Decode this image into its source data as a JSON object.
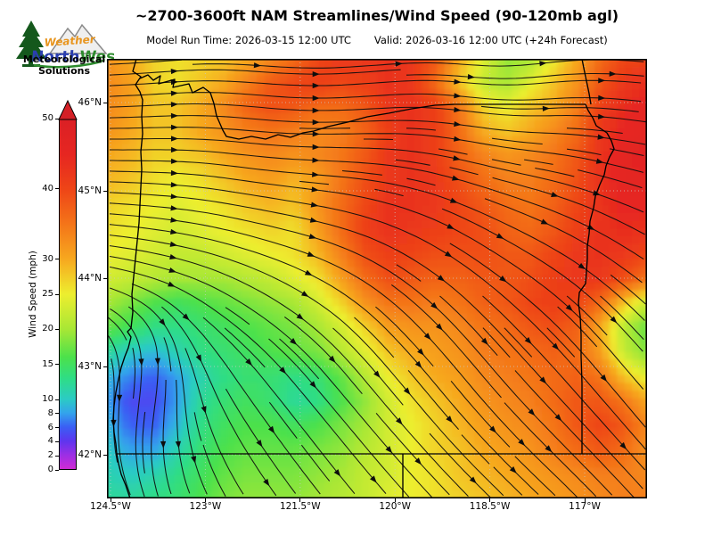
{
  "logo": {
    "brand_weather": "Weather",
    "brand_north": "North",
    "brand_west": "West",
    "tagline_line1": "Meteorological",
    "tagline_line2": "Solutions"
  },
  "header": {
    "title": "~2700-3600ft NAM Streamlines/Wind Speed (90-120mb agl)",
    "model_run_label": "Model Run Time: 2026-03-15 12:00 UTC",
    "valid_label": "Valid: 2026-03-16 12:00 UTC  (+24h Forecast)"
  },
  "colorbar": {
    "label": "Wind Speed (mph)",
    "units": "mph",
    "range": [
      0,
      50
    ],
    "extend_max_arrow": true,
    "arrow_color": "#d42026",
    "ticks": [
      0,
      2,
      4,
      6,
      8,
      10,
      15,
      20,
      25,
      30,
      40,
      50
    ],
    "stops": [
      [
        0,
        "#cf2bd4"
      ],
      [
        2,
        "#9c2fe4"
      ],
      [
        4,
        "#5e35ee"
      ],
      [
        6,
        "#3a5ef4"
      ],
      [
        8,
        "#33a3ec"
      ],
      [
        10,
        "#2bcbc4"
      ],
      [
        13,
        "#2fdd85"
      ],
      [
        16,
        "#4ce14b"
      ],
      [
        20,
        "#a8e735"
      ],
      [
        25,
        "#edee2f"
      ],
      [
        30,
        "#f7a81f"
      ],
      [
        35,
        "#f47519"
      ],
      [
        40,
        "#ee4517"
      ],
      [
        45,
        "#e62621"
      ],
      [
        50,
        "#db2025"
      ]
    ]
  },
  "map_axes": {
    "lat_ticks": [
      "46°N",
      "45°N",
      "44°N",
      "43°N",
      "42°N"
    ],
    "lon_ticks": [
      "124.5°W",
      "123°W",
      "121.5°W",
      "120°W",
      "118.5°W",
      "117°W"
    ]
  },
  "chart_data": {
    "type": "heatmap",
    "subtype": "streamline-wind-field-over-map",
    "region": "Oregon",
    "units": "mph",
    "legend_position": "left",
    "lon_extent": [
      -124.55,
      -116.0
    ],
    "lat_extent": [
      41.5,
      46.5
    ],
    "grid_cols": 24,
    "grid_rows": 19,
    "wind_speed_mph": [
      [
        32,
        30,
        27,
        26,
        27,
        28,
        30,
        33,
        36,
        40,
        42,
        42,
        43,
        42,
        38,
        30,
        24,
        19,
        20,
        25,
        30,
        36,
        40,
        40
      ],
      [
        33,
        31,
        27,
        26,
        28,
        30,
        34,
        38,
        40,
        41,
        40,
        41,
        43,
        42,
        36,
        28,
        22,
        20,
        24,
        28,
        32,
        38,
        42,
        44
      ],
      [
        33,
        31,
        28,
        28,
        30,
        33,
        37,
        39,
        38,
        36,
        36,
        38,
        42,
        43,
        41,
        35,
        27,
        25,
        28,
        30,
        34,
        41,
        44,
        46
      ],
      [
        32,
        30,
        28,
        28,
        30,
        32,
        34,
        35,
        34,
        33,
        34,
        37,
        41,
        43,
        41,
        36,
        30,
        28,
        30,
        33,
        36,
        42,
        45,
        46
      ],
      [
        30,
        29,
        27,
        27,
        28,
        30,
        32,
        33,
        32,
        33,
        35,
        38,
        42,
        43,
        41,
        37,
        34,
        32,
        33,
        35,
        38,
        43,
        46,
        47
      ],
      [
        29,
        28,
        26,
        25,
        26,
        28,
        30,
        31,
        29,
        31,
        35,
        39,
        42,
        43,
        42,
        39,
        36,
        34,
        34,
        36,
        39,
        43,
        46,
        46
      ],
      [
        27,
        26,
        25,
        24,
        25,
        26,
        28,
        29,
        28,
        32,
        36,
        40,
        43,
        43,
        42,
        40,
        38,
        36,
        35,
        37,
        40,
        43,
        45,
        45
      ],
      [
        26,
        25,
        24,
        23,
        24,
        25,
        26,
        27,
        26,
        31,
        36,
        41,
        43,
        42,
        41,
        40,
        39,
        37,
        36,
        38,
        41,
        43,
        44,
        43
      ],
      [
        25,
        24,
        23,
        22,
        22,
        23,
        24,
        25,
        26,
        29,
        34,
        39,
        41,
        40,
        39,
        39,
        39,
        38,
        38,
        40,
        42,
        43,
        42,
        40
      ],
      [
        23,
        22,
        21,
        20,
        20,
        20,
        21,
        22,
        24,
        26,
        31,
        36,
        39,
        38,
        37,
        37,
        38,
        38,
        39,
        41,
        42,
        42,
        39,
        35
      ],
      [
        20,
        18,
        16,
        15,
        16,
        17,
        18,
        19,
        20,
        23,
        27,
        32,
        35,
        35,
        34,
        35,
        37,
        38,
        40,
        41,
        40,
        36,
        28,
        22
      ],
      [
        17,
        15,
        13,
        13,
        14,
        15,
        16,
        17,
        18,
        20,
        23,
        27,
        31,
        32,
        32,
        33,
        35,
        36,
        38,
        39,
        37,
        30,
        21,
        17
      ],
      [
        12,
        10,
        9,
        11,
        13,
        14,
        15,
        16,
        17,
        18,
        21,
        24,
        28,
        30,
        31,
        32,
        34,
        35,
        36,
        37,
        36,
        31,
        22,
        18
      ],
      [
        9,
        7,
        6,
        8,
        11,
        13,
        14,
        14,
        13,
        14,
        17,
        21,
        25,
        28,
        30,
        31,
        33,
        34,
        35,
        36,
        37,
        35,
        28,
        24
      ],
      [
        8,
        5,
        5,
        8,
        12,
        14,
        15,
        14,
        12,
        13,
        16,
        19,
        23,
        26,
        28,
        30,
        32,
        33,
        34,
        36,
        38,
        38,
        35,
        30
      ],
      [
        9,
        6,
        6,
        9,
        13,
        15,
        16,
        16,
        15,
        16,
        18,
        20,
        23,
        25,
        27,
        29,
        31,
        32,
        33,
        35,
        38,
        40,
        38,
        33
      ],
      [
        10,
        8,
        8,
        11,
        14,
        16,
        17,
        17,
        17,
        18,
        19,
        21,
        23,
        25,
        27,
        28,
        30,
        31,
        32,
        34,
        36,
        38,
        36,
        32
      ],
      [
        11,
        10,
        11,
        13,
        15,
        17,
        18,
        18,
        18,
        19,
        20,
        22,
        23,
        25,
        26,
        28,
        29,
        30,
        31,
        32,
        33,
        34,
        34,
        33
      ],
      [
        12,
        12,
        13,
        14,
        16,
        18,
        19,
        19,
        19,
        20,
        21,
        22,
        24,
        25,
        26,
        27,
        28,
        29,
        30,
        31,
        32,
        33,
        34,
        34
      ]
    ],
    "flow_direction_deg": [
      [
        3,
        3,
        4,
        4,
        2,
        -1,
        -3,
        -4,
        -2,
        0,
        3,
        4,
        4,
        2,
        -1,
        -4,
        -3,
        2,
        6,
        6,
        3,
        0,
        -3,
        -5
      ],
      [
        3,
        3,
        4,
        3,
        1,
        -2,
        -4,
        -4,
        -2,
        0,
        3,
        4,
        4,
        2,
        -2,
        -5,
        -4,
        0,
        4,
        5,
        2,
        -1,
        -4,
        -6
      ],
      [
        2,
        2,
        3,
        2,
        -1,
        -3,
        -5,
        -5,
        -3,
        0,
        2,
        3,
        3,
        0,
        -4,
        -6,
        -6,
        -3,
        1,
        3,
        0,
        -3,
        -6,
        -7
      ],
      [
        0,
        1,
        1,
        0,
        -2,
        -4,
        -5,
        -4,
        -2,
        0,
        1,
        1,
        0,
        -3,
        -6,
        -8,
        -8,
        -6,
        -3,
        -2,
        -4,
        -6,
        -8,
        -8
      ],
      [
        -1,
        0,
        0,
        -2,
        -4,
        -6,
        -6,
        -5,
        -3,
        -2,
        -2,
        -3,
        -5,
        -8,
        -10,
        -12,
        -12,
        -10,
        -8,
        -8,
        -10,
        -12,
        -12,
        -12
      ],
      [
        -2,
        -2,
        -3,
        -4,
        -6,
        -8,
        -8,
        -7,
        -6,
        -5,
        -6,
        -8,
        -10,
        -12,
        -15,
        -16,
        -16,
        -15,
        -14,
        -14,
        -15,
        -16,
        -16,
        -16
      ],
      [
        -4,
        -4,
        -5,
        -6,
        -8,
        -10,
        -10,
        -10,
        -10,
        -10,
        -12,
        -14,
        -16,
        -18,
        -20,
        -22,
        -22,
        -21,
        -20,
        -20,
        -21,
        -22,
        -22,
        -22
      ],
      [
        -6,
        -6,
        -8,
        -9,
        -11,
        -13,
        -14,
        -14,
        -14,
        -15,
        -17,
        -19,
        -22,
        -24,
        -26,
        -28,
        -28,
        -27,
        -26,
        -26,
        -27,
        -28,
        -28,
        -27
      ],
      [
        -9,
        -10,
        -12,
        -13,
        -15,
        -17,
        -18,
        -19,
        -20,
        -21,
        -23,
        -26,
        -28,
        -30,
        -32,
        -33,
        -33,
        -32,
        -31,
        -31,
        -32,
        -33,
        -33,
        -32
      ],
      [
        -14,
        -16,
        -18,
        -20,
        -22,
        -24,
        -25,
        -26,
        -27,
        -28,
        -30,
        -32,
        -34,
        -36,
        -37,
        -38,
        -38,
        -37,
        -36,
        -36,
        -37,
        -38,
        -38,
        -37
      ],
      [
        -25,
        -30,
        -35,
        -35,
        -33,
        -32,
        -32,
        -32,
        -33,
        -34,
        -36,
        -38,
        -40,
        -41,
        -42,
        -43,
        -43,
        -42,
        -41,
        -41,
        -42,
        -43,
        -43,
        -42
      ],
      [
        -45,
        -55,
        -60,
        -55,
        -45,
        -40,
        -38,
        -38,
        -39,
        -40,
        -42,
        -44,
        -45,
        -46,
        -46,
        -47,
        -47,
        -46,
        -45,
        -45,
        -46,
        -47,
        -47,
        -46
      ],
      [
        -70,
        -80,
        -85,
        -75,
        -60,
        -50,
        -45,
        -44,
        -44,
        -45,
        -46,
        -47,
        -48,
        -48,
        -49,
        -49,
        -49,
        -48,
        -47,
        -47,
        -48,
        -49,
        -49,
        -48
      ],
      [
        -85,
        -92,
        -95,
        -85,
        -70,
        -58,
        -52,
        -50,
        -49,
        -49,
        -50,
        -50,
        -50,
        -50,
        -50,
        -50,
        -50,
        -49,
        -48,
        -48,
        -49,
        -50,
        -50,
        -49
      ],
      [
        -90,
        -96,
        -98,
        -90,
        -75,
        -62,
        -55,
        -52,
        -51,
        -50,
        -50,
        -50,
        -50,
        -50,
        -50,
        -50,
        -49,
        -48,
        -47,
        -47,
        -48,
        -49,
        -50,
        -50
      ],
      [
        -88,
        -95,
        -96,
        -88,
        -75,
        -64,
        -57,
        -54,
        -52,
        -51,
        -50,
        -50,
        -49,
        -49,
        -49,
        -48,
        -48,
        -47,
        -46,
        -46,
        -47,
        -48,
        -49,
        -50
      ],
      [
        -80,
        -88,
        -90,
        -84,
        -73,
        -64,
        -58,
        -55,
        -53,
        -52,
        -51,
        -50,
        -49,
        -48,
        -48,
        -47,
        -46,
        -46,
        -45,
        -45,
        -46,
        -47,
        -48,
        -49
      ],
      [
        -70,
        -78,
        -82,
        -78,
        -70,
        -63,
        -58,
        -55,
        -53,
        -52,
        -51,
        -50,
        -49,
        -48,
        -47,
        -46,
        -45,
        -45,
        -44,
        -44,
        -45,
        -46,
        -47,
        -48
      ],
      [
        -60,
        -68,
        -72,
        -70,
        -66,
        -61,
        -57,
        -55,
        -53,
        -52,
        -51,
        -50,
        -49,
        -48,
        -47,
        -46,
        -45,
        -44,
        -44,
        -44,
        -45,
        -46,
        -47,
        -48
      ]
    ]
  }
}
